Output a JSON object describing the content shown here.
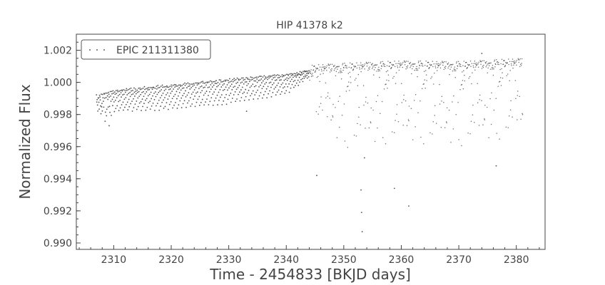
{
  "chart_data": {
    "type": "scatter",
    "title": "HIP 41378 k2",
    "xlabel": "Time - 2454833 [BKJD days]",
    "ylabel": "Normalized Flux",
    "xlim": [
      2303.5,
      2385
    ],
    "ylim": [
      0.9896,
      1.003
    ],
    "xticks": [
      2310,
      2320,
      2330,
      2340,
      2350,
      2360,
      2370,
      2380
    ],
    "yticks": [
      0.99,
      0.992,
      0.994,
      0.996,
      0.998,
      1.0,
      1.002
    ],
    "grid": false,
    "legend": {
      "position": "top-left"
    },
    "colors": {
      "marker": "#333333",
      "axis": "#444444"
    },
    "series": [
      {
        "name": "EPIC 211311380",
        "x_range": [
          2307.0,
          2381.1
        ],
        "trend": [
          [
            2307.0,
            0.9992
          ],
          [
            2310,
            0.9995
          ],
          [
            2320,
            0.99985
          ],
          [
            2330,
            1.0002
          ],
          [
            2340,
            1.0005
          ],
          [
            2345,
            1.0008
          ],
          [
            2350,
            1.0009
          ],
          [
            2360,
            1.00105
          ],
          [
            2370,
            1.001
          ],
          [
            2381,
            1.0012
          ]
        ],
        "dip_depth": [
          [
            2307.0,
            0.0012
          ],
          [
            2310,
            0.0013
          ],
          [
            2320,
            0.0015
          ],
          [
            2330,
            0.0015
          ],
          [
            2340,
            0.0012
          ],
          [
            2344,
            0.0004
          ],
          [
            2345,
            0.003
          ],
          [
            2350,
            0.005
          ],
          [
            2360,
            0.0048
          ],
          [
            2370,
            0.005
          ],
          [
            2381,
            0.0045
          ]
        ],
        "notable_points": [
          {
            "x": 2309.2,
            "y": 0.9973
          },
          {
            "x": 2353.1,
            "y": 0.9919
          },
          {
            "x": 2353.2,
            "y": 0.9907
          },
          {
            "x": 2353.0,
            "y": 0.9933
          },
          {
            "x": 2353.6,
            "y": 0.9953
          },
          {
            "x": 2361.3,
            "y": 0.9923
          },
          {
            "x": 2345.3,
            "y": 0.9942
          },
          {
            "x": 2358.8,
            "y": 0.9934
          },
          {
            "x": 2376.5,
            "y": 0.9948
          },
          {
            "x": 2333.1,
            "y": 0.9982
          },
          {
            "x": 2374.0,
            "y": 1.0018
          }
        ]
      }
    ]
  }
}
